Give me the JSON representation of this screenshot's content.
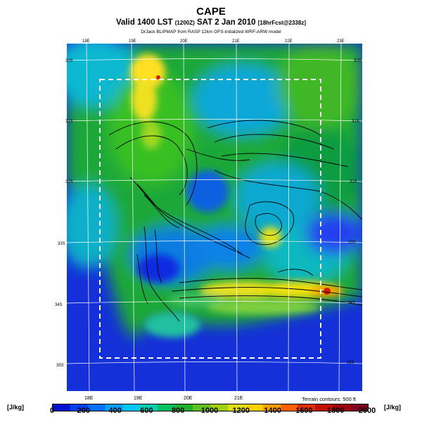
{
  "header": {
    "title": "CAPE",
    "valid": "Valid 1400 LST",
    "valid_small": "(1200Z)",
    "date": "SAT 2 Jan 2010",
    "fcst_small": "[18hrFcst@2338z]",
    "credit": "DrJack BLIPMAP from RASP 12km GFS-initialized WRF-ARW model"
  },
  "grid_labels": {
    "top": [
      "18E",
      "19E",
      "20E",
      "21E",
      "22E",
      "23E"
    ],
    "bottom": [
      "18E",
      "19E",
      "20E",
      "21E"
    ],
    "left": [
      "30S",
      "31S",
      "32S",
      "33S",
      "34S",
      "35S"
    ],
    "right": [
      "30S",
      "31S",
      "32S",
      "33S",
      "34S",
      "35S"
    ]
  },
  "terrain_note": "Terrain contours: 500 ft",
  "legend": {
    "unit_left": "[J/kg]",
    "unit_right": "[J/kg]",
    "ticks": [
      "0",
      "200",
      "400",
      "600",
      "800",
      "1000",
      "1200",
      "1400",
      "1600",
      "1800",
      "2000"
    ],
    "colors": [
      "#0010d0",
      "#0040f0",
      "#0070ff",
      "#00a0ff",
      "#00c8f0",
      "#00d0b0",
      "#00c060",
      "#20b030",
      "#60c020",
      "#a0d010",
      "#e0e010",
      "#ffd000",
      "#ffa000",
      "#ff6000",
      "#e03000",
      "#c01000",
      "#a00010",
      "#800020"
    ]
  },
  "colors": {
    "ocean": "#1430d8",
    "grid": "#ffffff",
    "contour": "#000000",
    "box": "#ffffff"
  }
}
